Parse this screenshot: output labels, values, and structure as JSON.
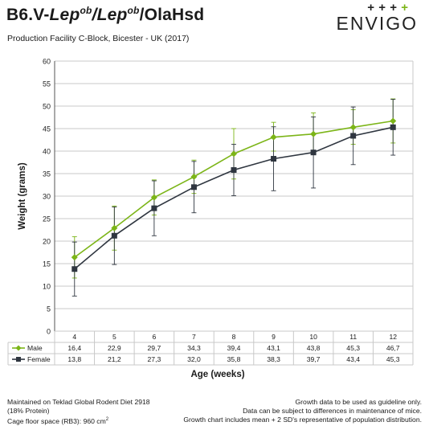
{
  "header": {
    "title_prefix": "B6.V-",
    "title_gene1": "Lep",
    "title_sup1": "ob",
    "title_slash": "/",
    "title_gene2": "Lep",
    "title_sup2": "ob",
    "title_suffix": "/OlaHsd",
    "subtitle": "Production Facility C-Block, Bicester - UK (2017)"
  },
  "logo": {
    "text": "ENVIGO",
    "plus_signs": [
      "+",
      "+",
      "+",
      "+"
    ],
    "plus_colors": [
      "#222222",
      "#222222",
      "#222222",
      "#7cb518"
    ]
  },
  "colors": {
    "male": "#7cb518",
    "female": "#2f3640",
    "grid": "#c8c8c8",
    "axis": "#555555"
  },
  "chart_data": {
    "type": "line",
    "title": "",
    "xlabel": "Age (weeks)",
    "ylabel": "Weight (grams)",
    "ylim": [
      0,
      60
    ],
    "yticks": [
      0,
      5,
      10,
      15,
      20,
      25,
      30,
      35,
      40,
      45,
      50,
      55,
      60
    ],
    "x": [
      4,
      5,
      6,
      7,
      8,
      9,
      10,
      11,
      12
    ],
    "grid": "horizontal",
    "legend": "table-below",
    "series": [
      {
        "name": "Male",
        "color": "#7cb518",
        "marker": "diamond",
        "values": [
          16.4,
          22.9,
          29.7,
          34.3,
          39.4,
          43.1,
          43.8,
          45.3,
          46.7
        ],
        "labels": [
          "16,4",
          "22,9",
          "29,7",
          "34,3",
          "39,4",
          "43,1",
          "43,8",
          "45,3",
          "46,7"
        ],
        "err_low": [
          11.8,
          18.0,
          25.8,
          30.6,
          33.8,
          40.0,
          39.2,
          41.5,
          41.8
        ],
        "err_high": [
          21.0,
          27.8,
          33.6,
          38.0,
          45.0,
          46.4,
          48.5,
          49.2,
          51.6
        ]
      },
      {
        "name": "Female",
        "color": "#2f3640",
        "marker": "square",
        "values": [
          13.8,
          21.2,
          27.3,
          32.0,
          35.8,
          38.3,
          39.7,
          43.4,
          45.3
        ],
        "labels": [
          "13,8",
          "21,2",
          "27,3",
          "32,0",
          "35,8",
          "38,3",
          "39,7",
          "43,4",
          "45,3"
        ],
        "err_low": [
          7.8,
          14.8,
          21.2,
          26.3,
          30.1,
          31.2,
          31.8,
          37.0,
          39.1
        ],
        "err_high": [
          19.8,
          27.6,
          33.4,
          37.7,
          41.5,
          45.4,
          47.6,
          49.8,
          51.5
        ]
      }
    ]
  },
  "footer": {
    "left_line1": "Maintained on Teklad Global Rodent Diet 2918",
    "left_line2": "(18% Protein)",
    "left_line3": "Cage floor space (RB3): 960 cm",
    "left_line3_sup": "2",
    "right_line1": "Growth data to be used as guideline only.",
    "right_line2": "Data can be subject to differences in maintenance of mice.",
    "right_line3": "Growth chart includes mean + 2 SD's representative of population distribution."
  }
}
